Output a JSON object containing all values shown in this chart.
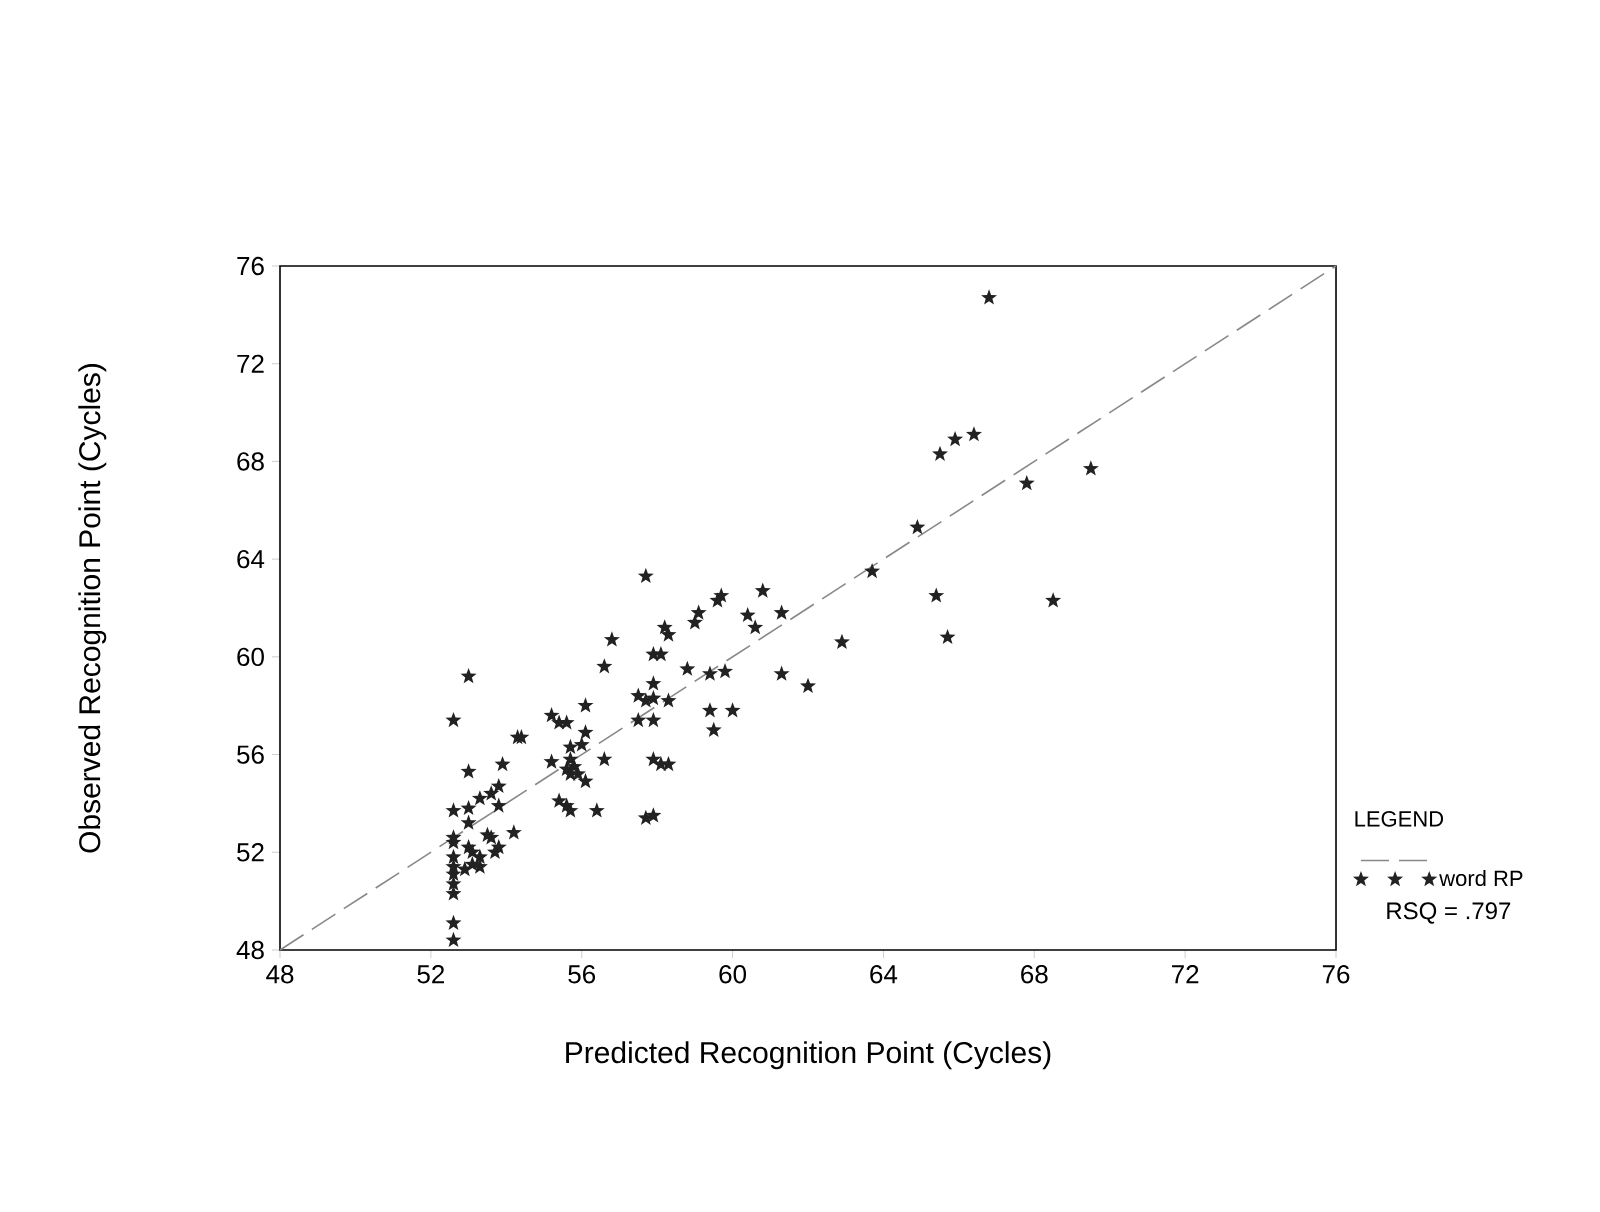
{
  "chart_data": {
    "type": "scatter",
    "xlabel": "Predicted Recognition Point (Cycles)",
    "ylabel": "Observed Recognition Point (Cycles)",
    "legend_title": "LEGEND",
    "legend": "right",
    "annotations": [
      "RSQ = .797"
    ],
    "xlim": [
      48,
      76
    ],
    "ylim": [
      48,
      76
    ],
    "xticks": [
      48,
      52,
      56,
      60,
      64,
      68,
      72,
      76
    ],
    "yticks": [
      48,
      52,
      56,
      60,
      64,
      68,
      72,
      76
    ],
    "series": [
      {
        "type": "line",
        "color": "#888888",
        "line_style": "dashed",
        "marker": "none",
        "x": [
          48,
          76
        ],
        "values": [
          48,
          76
        ]
      },
      {
        "name": "word RP",
        "color": "#222222",
        "marker": "star",
        "x": [
          57.7,
          53.0,
          52.6,
          56.8,
          56.6,
          58.2,
          58.3,
          57.9,
          58.1,
          59.0,
          59.1,
          59.6,
          59.7,
          60.8,
          60.4,
          60.6,
          61.3,
          58.8,
          59.4,
          59.8,
          61.3,
          62.0,
          57.9,
          57.5,
          57.7,
          57.9,
          58.3,
          57.5,
          57.9,
          59.4,
          60.0,
          59.5,
          57.9,
          58.1,
          58.3,
          57.7,
          57.9,
          56.1,
          56.1,
          55.2,
          55.4,
          55.6,
          54.3,
          54.4,
          56.0,
          55.7,
          55.2,
          55.7,
          55.8,
          55.6,
          55.7,
          55.9,
          56.1,
          56.6,
          55.4,
          55.6,
          55.7,
          56.4,
          53.0,
          53.9,
          53.8,
          53.6,
          53.3,
          53.0,
          52.6,
          53.8,
          53.0,
          54.2,
          53.5,
          53.6,
          53.8,
          53.7,
          52.6,
          52.6,
          53.0,
          53.1,
          53.3,
          53.1,
          53.3,
          52.9,
          52.6,
          52.6,
          52.6,
          52.6,
          52.6,
          52.6,
          52.6,
          66.8,
          65.5,
          65.9,
          66.4,
          69.5,
          67.8,
          64.9,
          63.7,
          65.4,
          68.5,
          65.7,
          62.9
        ],
        "values": [
          63.3,
          59.2,
          57.4,
          60.7,
          59.6,
          61.2,
          60.9,
          60.1,
          60.1,
          61.4,
          61.8,
          62.3,
          62.5,
          62.7,
          61.7,
          61.2,
          61.8,
          59.5,
          59.3,
          59.4,
          59.3,
          58.8,
          58.9,
          58.4,
          58.2,
          58.3,
          58.2,
          57.4,
          57.4,
          57.8,
          57.8,
          57.0,
          55.8,
          55.6,
          55.6,
          53.4,
          53.5,
          58.0,
          56.9,
          57.6,
          57.3,
          57.3,
          56.7,
          56.7,
          56.4,
          56.3,
          55.7,
          55.8,
          55.5,
          55.4,
          55.2,
          55.2,
          54.9,
          55.8,
          54.1,
          53.9,
          53.7,
          53.7,
          55.3,
          55.6,
          54.7,
          54.4,
          54.2,
          53.8,
          53.7,
          53.9,
          53.2,
          52.8,
          52.7,
          52.6,
          52.2,
          52.0,
          52.6,
          52.4,
          52.2,
          52.0,
          51.8,
          51.5,
          51.4,
          51.3,
          51.8,
          51.4,
          51.1,
          50.7,
          50.3,
          49.1,
          48.4,
          74.7,
          68.3,
          68.9,
          69.1,
          67.7,
          67.1,
          65.3,
          63.5,
          62.5,
          62.3,
          60.8,
          60.6
        ]
      }
    ]
  }
}
